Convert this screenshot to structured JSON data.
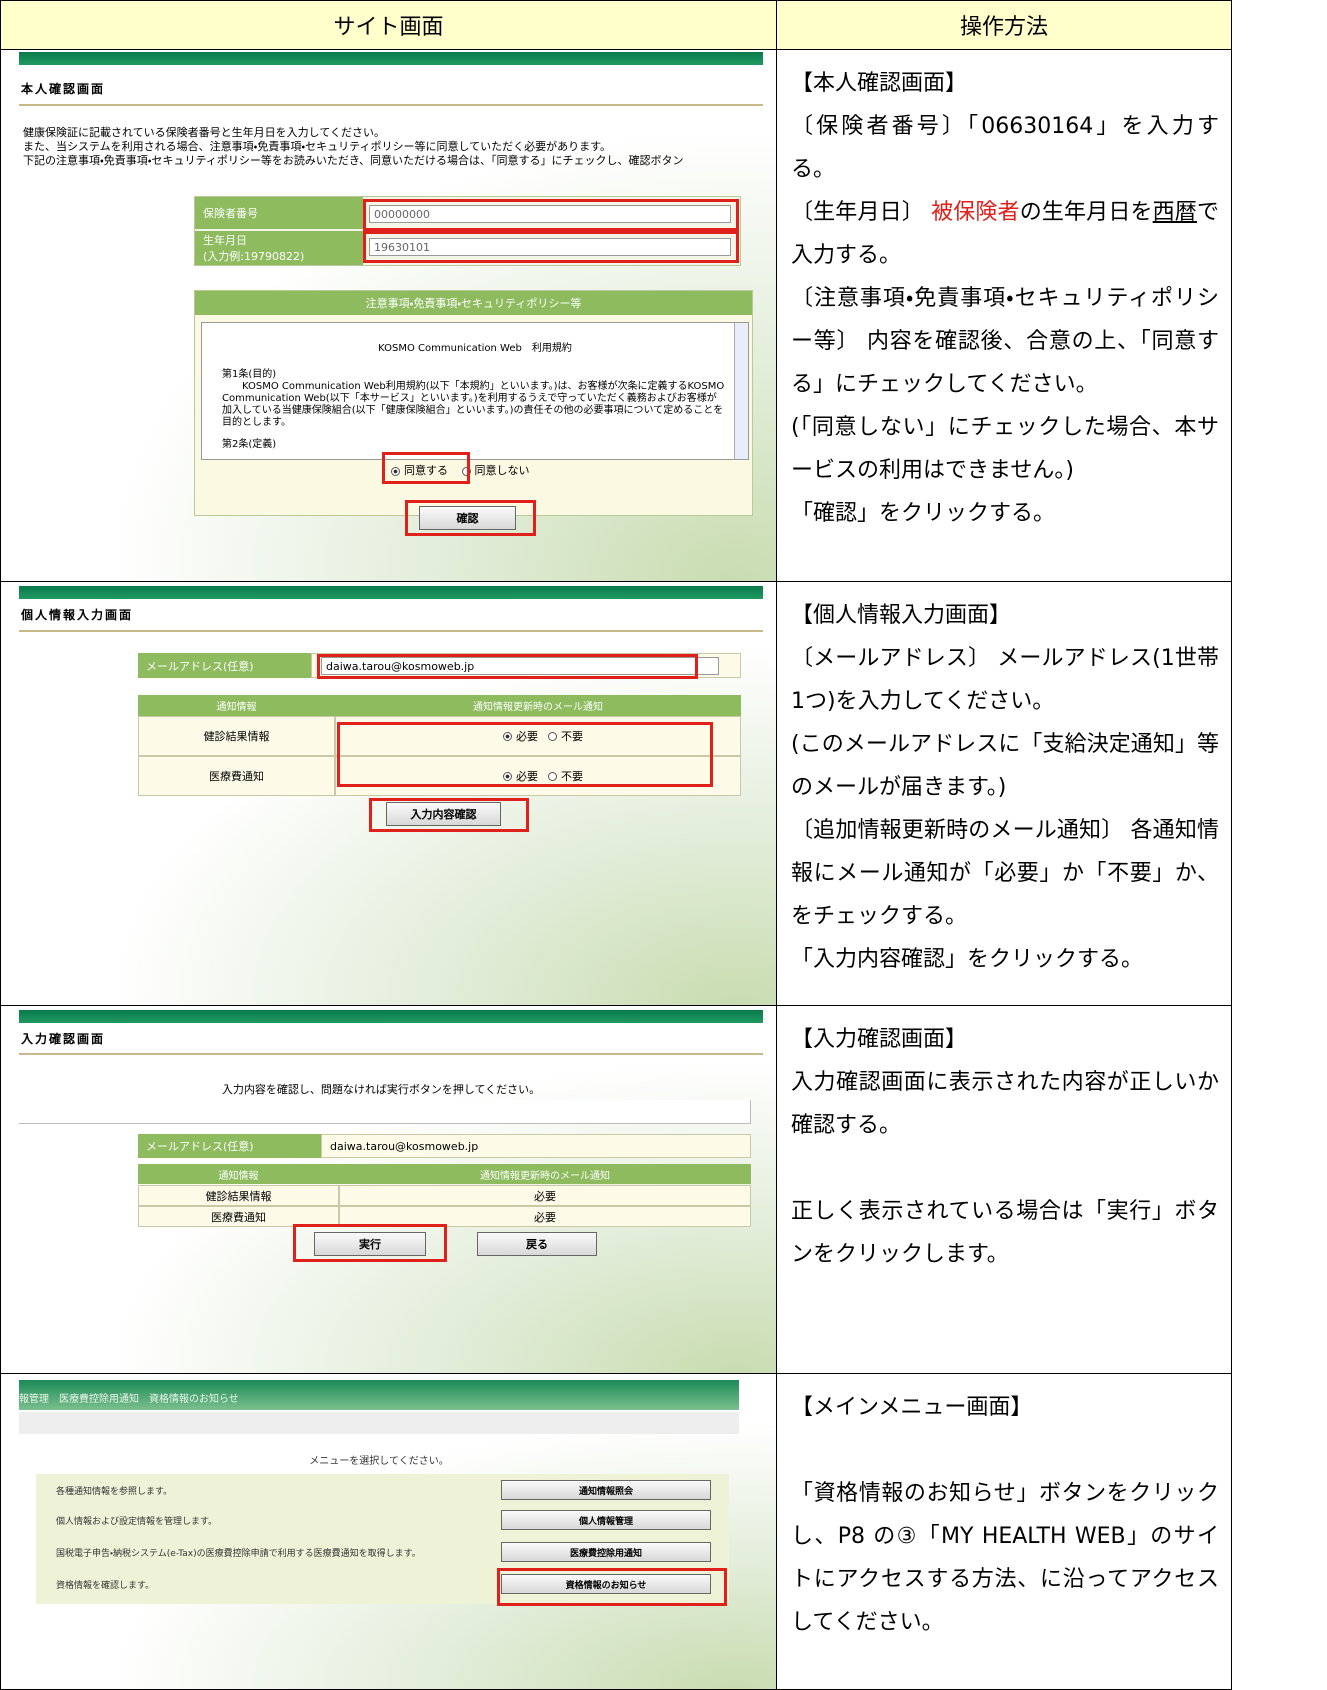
{
  "header": {
    "site_screen": "サイト画面",
    "operation": "操作方法"
  },
  "rows": [
    {
      "screen": {
        "title": "本人確認画面",
        "intro": [
          "健康保険証に記載されている保険者番号と生年月日を入力してください。",
          "また、当システムを利用される場合、注意事項・免責事項・セキュリティポリシー等に同意していただく必要があります。",
          "下記の注意事項・免責事項・セキュリティポリシー等をお読みいただき、同意いただける場合は、「同意する」にチェックし、確認ボタン"
        ],
        "fields": [
          {
            "label": "保険者番号",
            "value": "00000000"
          },
          {
            "label": "生年月日",
            "hint": "(入力例:19790822)",
            "value": "19630101"
          }
        ],
        "terms": {
          "heading": "注意事項・免責事項・セキュリティポリシー等",
          "doc_title": "KOSMO Communication Web　利用規約",
          "article1_heading": "第1条(目的)",
          "article1_body": "KOSMO Communication Web利用規約(以下「本規約」といいます。)は、お客様が次条に定義するKOSMO Communication Web(以下「本サービス」といいます。)を利用するうえで守っていただく義務およびお客様が加入している当健康保険組合(以下「健康保険組合」といいます。)の責任その他の必要事項について定めることを目的とします。",
          "article2_heading": "第2条(定義)"
        },
        "options": [
          "同意する",
          "同意しない"
        ],
        "button": "確認"
      },
      "steps": [
        "【本人確認画面】",
        "〔保険者番号〕「06630164」を入力する。",
        [
          "〔生年月日〕 ",
          "被保険者",
          "の生年月日を",
          "西暦",
          "で入力する。"
        ],
        "〔注意事項・免責事項・セキュリティポリシー等〕 内容を確認後、合意の上、「同意する」にチェックしてください。",
        "(「同意しない」にチェックした場合、本サービスの利用はできません。)",
        "「確認」をクリックする。"
      ]
    },
    {
      "screen": {
        "title": "個人情報入力画面",
        "email_label": "メールアドレス(任意)",
        "email_value": "daiwa.tarou@kosmoweb.jp",
        "table_headers": [
          "通知情報",
          "通知情報更新時のメール通知"
        ],
        "rows": [
          {
            "name": "健診結果情報",
            "options": [
              "必要",
              "不要"
            ]
          },
          {
            "name": "医療費通知",
            "options": [
              "必要",
              "不要"
            ]
          }
        ],
        "button": "入力内容確認"
      },
      "steps": [
        "【個人情報入力画面】",
        "〔メールアドレス〕 メールアドレス(1世帯1つ)を入力してください。",
        "(このメールアドレスに「支給決定通知」等のメールが届きます。)",
        "〔追加情報更新時のメール通知〕 各通知情報にメール通知が「必要」か「不要」か、をチェックする。",
        "「入力内容確認」をクリックする。"
      ]
    },
    {
      "screen": {
        "title": "入力確認画面",
        "message": "入力内容を確認し、問題なければ実行ボタンを押してください。",
        "email_label": "メールアドレス(任意)",
        "email_value": "daiwa.tarou@kosmoweb.jp",
        "table_headers": [
          "通知情報",
          "通知情報更新時のメール通知"
        ],
        "rows": [
          {
            "name": "健診結果情報",
            "value": "必要"
          },
          {
            "name": "医療費通知",
            "value": "必要"
          }
        ],
        "buttons": [
          "実行",
          "戻る"
        ]
      },
      "steps": [
        "【入力確認画面】",
        "入力確認画面に表示された内容が正しいか確認する。",
        "正しく表示されている場合は「実行」ボタンをクリックします。"
      ]
    },
    {
      "screen": {
        "menu_bar": "報管理　医療費控除用通知　資格情報のお知らせ",
        "message": "メニューを選択してください。",
        "items": [
          {
            "description": "各種通知情報を参照します。",
            "button": "通知情報照会"
          },
          {
            "description": "個人情報および設定情報を管理します。",
            "button": "個人情報管理"
          },
          {
            "description": "国税電子申告・納税システム(e-Tax)の医療費控除申請で利用する医療費通知を取得します。",
            "button": "医療費控除用通知"
          },
          {
            "description": "資格情報を確認します。",
            "button": "資格情報のお知らせ"
          }
        ]
      },
      "steps": [
        "【メインメニュー画面】",
        "「資格情報のお知らせ」ボタンをクリックし、P8 の③「MY HEALTH WEB」のサイトにアクセスする方法、に沿ってアクセスしてください。"
      ]
    }
  ]
}
